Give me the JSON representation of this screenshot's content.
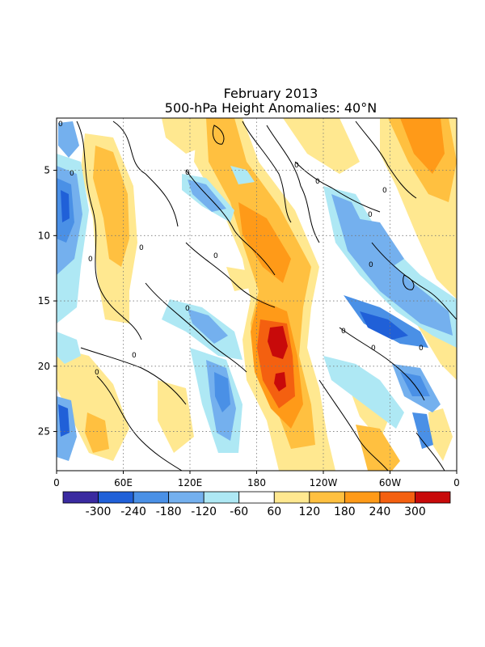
{
  "chart_data": {
    "type": "heatmap",
    "title": "February 2013",
    "subtitle": "500-hPa Height Anomalies: 40°N",
    "x_ticks": [
      "0",
      "60E",
      "120E",
      "180",
      "120W",
      "60W",
      "0"
    ],
    "x_tick_values": [
      0,
      60,
      120,
      180,
      240,
      300,
      360
    ],
    "y_ticks": [
      "5",
      "10",
      "15",
      "20",
      "25"
    ],
    "y_tick_values": [
      5,
      10,
      15,
      20,
      25
    ],
    "xlim": [
      0,
      360
    ],
    "ylim": [
      1,
      28
    ],
    "grid": true,
    "contour_label": "0",
    "legend": {
      "labels": [
        "-300",
        "-240",
        "-180",
        "-120",
        "-60",
        "60",
        "120",
        "180",
        "240",
        "300"
      ],
      "colors": [
        "#3a2aa0",
        "#2060d8",
        "#4a90e6",
        "#74b0ee",
        "#aee8f4",
        "#ffffff",
        "#ffe890",
        "#ffc040",
        "#ff9a18",
        "#f46010",
        "#c80a0a"
      ]
    },
    "features": [
      {
        "name": "max-anomaly-center",
        "lon": 198,
        "day": 18,
        "value": 300
      },
      {
        "name": "secondary-max-center",
        "lon": 202,
        "day": 21,
        "value": 300
      },
      {
        "name": "ridge-axis",
        "path": [
          [
            180,
            1
          ],
          [
            190,
            7
          ],
          [
            198,
            10
          ],
          [
            205,
            13
          ],
          [
            200,
            16
          ],
          [
            200,
            19
          ],
          [
            205,
            22
          ],
          [
            212,
            25
          ],
          [
            218,
            28
          ]
        ],
        "value": 180
      },
      {
        "name": "trough-axis",
        "path": [
          [
            280,
            12
          ],
          [
            300,
            16
          ],
          [
            320,
            19
          ],
          [
            340,
            22
          ],
          [
            355,
            25
          ]
        ],
        "value": -240
      }
    ]
  }
}
